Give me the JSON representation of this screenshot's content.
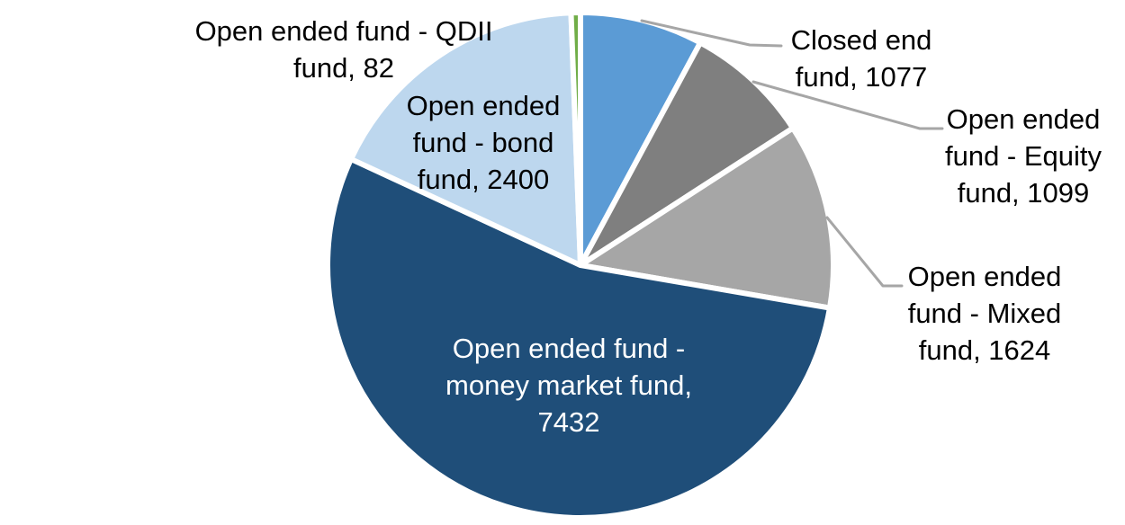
{
  "page": {
    "background_color": "#FFFFFF"
  },
  "chart_data": {
    "type": "pie",
    "title": "",
    "total": 13714,
    "start_angle_deg": 0,
    "direction": "clockwise",
    "legend": "none",
    "gap_color": "#FFFFFF",
    "leader_line_color": "#A6A6A6",
    "label_text_color": "#000000",
    "inside_label_text_color": "#FFFFFF",
    "slices": [
      {
        "name": "Closed end fund",
        "value": 1077,
        "color": "#5B9BD5",
        "label_placement": "outside-callout",
        "label_lines": [
          "Closed end",
          "fund, 1077"
        ]
      },
      {
        "name": "Open ended fund - Equity fund",
        "value": 1099,
        "color": "#7F7F7F",
        "label_placement": "outside-callout",
        "label_lines": [
          "Open ended",
          "fund - Equity",
          "fund, 1099"
        ]
      },
      {
        "name": "Open ended fund - Mixed fund",
        "value": 1624,
        "color": "#A6A6A6",
        "label_placement": "outside-callout",
        "label_lines": [
          "Open ended",
          "fund - Mixed",
          "fund, 1624"
        ]
      },
      {
        "name": "Open ended fund - money market fund",
        "value": 7432,
        "color": "#1F4E79",
        "label_placement": "inside",
        "label_lines": [
          "Open ended fund -",
          "money market fund,",
          "7432"
        ]
      },
      {
        "name": "Open ended fund - bond fund",
        "value": 2400,
        "color": "#BDD7EE",
        "label_placement": "outside",
        "label_lines": [
          "Open ended",
          "fund - bond",
          "fund, 2400"
        ]
      },
      {
        "name": "Open ended fund - QDII fund",
        "value": 82,
        "color": "#70AD47",
        "label_placement": "outside",
        "label_lines": [
          "Open ended fund - QDII",
          "fund, 82"
        ]
      }
    ]
  }
}
